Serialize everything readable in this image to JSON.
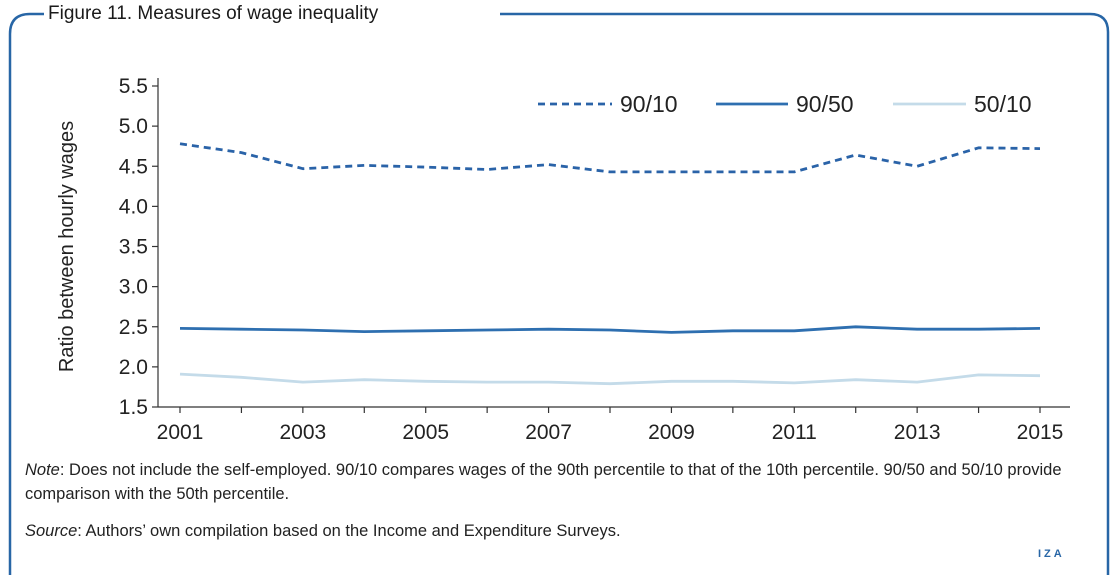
{
  "figure": {
    "title": "Figure 11. Measures of wage inequality",
    "note_label": "Note",
    "note_text": ": Does not include the self-employed. 90/10 compares wages of the 90th percentile to that of the 10th percentile. 90/50 and 50/10 provide comparison with the 50th percentile.",
    "source_label": "Source",
    "source_text": ": Authors’ own compilation based on the Income and Expenditure Surveys.",
    "logo": "IZA"
  },
  "colors": {
    "frame": "#2866a6",
    "series_90_10": "#2a63a8",
    "series_90_50": "#2e6fb0",
    "series_50_10": "#c4dbe9",
    "axis": "#333333"
  },
  "chart_data": {
    "type": "line",
    "title": "",
    "xlabel": "",
    "ylabel": "Ratio between hourly wages",
    "ylim": [
      1.5,
      5.5
    ],
    "yticks": [
      "1.5",
      "2.0",
      "2.5",
      "3.0",
      "3.5",
      "4.0",
      "4.5",
      "5.0",
      "5.5"
    ],
    "xticks": [
      "2001",
      "2003",
      "2005",
      "2007",
      "2009",
      "2011",
      "2013",
      "2015"
    ],
    "x": [
      2001,
      2002,
      2003,
      2004,
      2005,
      2006,
      2007,
      2008,
      2009,
      2010,
      2011,
      2012,
      2013,
      2014,
      2015
    ],
    "legend_position": "top-right",
    "grid": false,
    "series": [
      {
        "name": "90/10",
        "style": "dashed",
        "values": [
          4.78,
          4.67,
          4.47,
          4.51,
          4.49,
          4.46,
          4.52,
          4.43,
          4.43,
          4.43,
          4.43,
          4.64,
          4.5,
          4.73,
          4.72
        ]
      },
      {
        "name": "90/50",
        "style": "solid",
        "values": [
          2.48,
          2.47,
          2.46,
          2.44,
          2.45,
          2.46,
          2.47,
          2.46,
          2.43,
          2.45,
          2.45,
          2.5,
          2.47,
          2.47,
          2.48
        ]
      },
      {
        "name": "50/10",
        "style": "solid",
        "values": [
          1.91,
          1.87,
          1.81,
          1.84,
          1.82,
          1.81,
          1.81,
          1.79,
          1.82,
          1.82,
          1.8,
          1.84,
          1.81,
          1.9,
          1.89
        ]
      }
    ]
  }
}
